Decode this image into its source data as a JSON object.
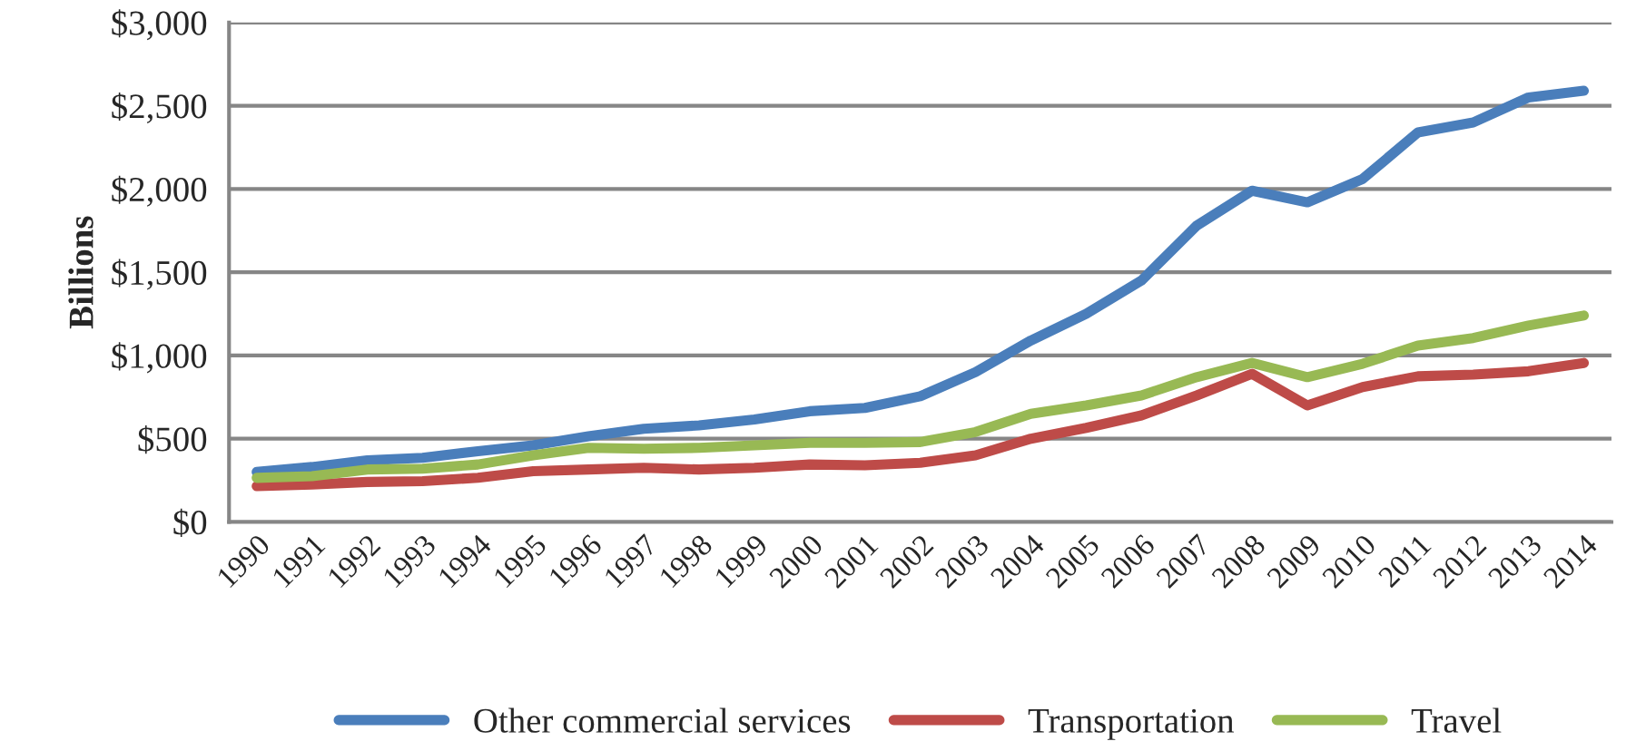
{
  "chart_data": {
    "type": "line",
    "ylabel": "Billions",
    "categories": [
      "1990",
      "1991",
      "1992",
      "1993",
      "1994",
      "1995",
      "1996",
      "1997",
      "1998",
      "1999",
      "2000",
      "2001",
      "2002",
      "2003",
      "2004",
      "2005",
      "2006",
      "2007",
      "2008",
      "2009",
      "2010",
      "2011",
      "2012",
      "2013",
      "2014"
    ],
    "series": [
      {
        "name": "Other commercial services",
        "color": "#4a7ebb",
        "values": [
          300,
          330,
          370,
          385,
          425,
          460,
          515,
          560,
          580,
          615,
          665,
          685,
          755,
          900,
          1090,
          1250,
          1450,
          1780,
          1990,
          1920,
          2060,
          2340,
          2400,
          2550,
          2590
        ]
      },
      {
        "name": "Transportation",
        "color": "#be4b48",
        "values": [
          215,
          225,
          240,
          245,
          265,
          305,
          315,
          325,
          315,
          325,
          345,
          340,
          355,
          400,
          500,
          565,
          640,
          760,
          890,
          700,
          810,
          875,
          885,
          905,
          955
        ]
      },
      {
        "name": "Travel",
        "color": "#98b954",
        "values": [
          265,
          275,
          315,
          320,
          345,
          400,
          445,
          440,
          445,
          460,
          475,
          475,
          480,
          540,
          650,
          700,
          760,
          870,
          955,
          870,
          950,
          1060,
          1105,
          1180,
          1240
        ]
      }
    ],
    "ylim": [
      0,
      3000
    ],
    "yticks": [
      {
        "value": 0,
        "label": "$0"
      },
      {
        "value": 500,
        "label": "$500"
      },
      {
        "value": 1000,
        "label": "$1,000"
      },
      {
        "value": 1500,
        "label": "$1,500"
      },
      {
        "value": 2000,
        "label": "$2,000"
      },
      {
        "value": 2500,
        "label": "$2,500"
      },
      {
        "value": 3000,
        "label": "$3,000"
      }
    ],
    "grid": "y",
    "legend": "bottom",
    "marker": "none",
    "line_style": "solid"
  }
}
